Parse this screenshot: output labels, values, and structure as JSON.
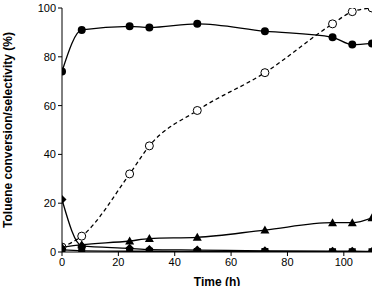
{
  "chart_data": {
    "type": "line",
    "x_label": "Time (h)",
    "y_label": "Toluene conversion/selectivity (%)",
    "x": [
      0,
      7,
      24,
      31,
      48,
      72,
      96,
      103,
      110
    ],
    "xlim": [
      0,
      110
    ],
    "xticks": [
      0,
      20,
      40,
      60,
      80,
      100
    ],
    "ylim": [
      0,
      100
    ],
    "yticks": [
      0,
      20,
      40,
      60,
      80,
      100
    ],
    "grid": false,
    "series": [
      {
        "color": "#000000",
        "marker": "circle",
        "line_style": "solid",
        "values": [
          74,
          91,
          92.5,
          92,
          93.5,
          90.5,
          88,
          85,
          85.5
        ]
      },
      {
        "color": "#000000",
        "marker": "open_circle",
        "line_style": "dashed",
        "values": [
          2,
          6.5,
          32,
          43.5,
          58,
          73.5,
          93.5,
          98.5,
          100
        ]
      },
      {
        "color": "#000000",
        "marker": "triangle",
        "line_style": "solid",
        "values": [
          2,
          3,
          4.5,
          5.5,
          6,
          9,
          12,
          12,
          14
        ]
      },
      {
        "color": "#000000",
        "marker": "diamond",
        "line_style": "solid",
        "values": [
          21.5,
          2.5,
          1.5,
          1,
          0.8,
          0.5,
          0.3,
          0.3,
          0.2
        ]
      },
      {
        "color": "#000000",
        "marker": "square",
        "line_style": "solid",
        "values": [
          1,
          0.5,
          0.3,
          0.3,
          0.2,
          0.2,
          0.1,
          0.1,
          0.1
        ]
      }
    ]
  }
}
